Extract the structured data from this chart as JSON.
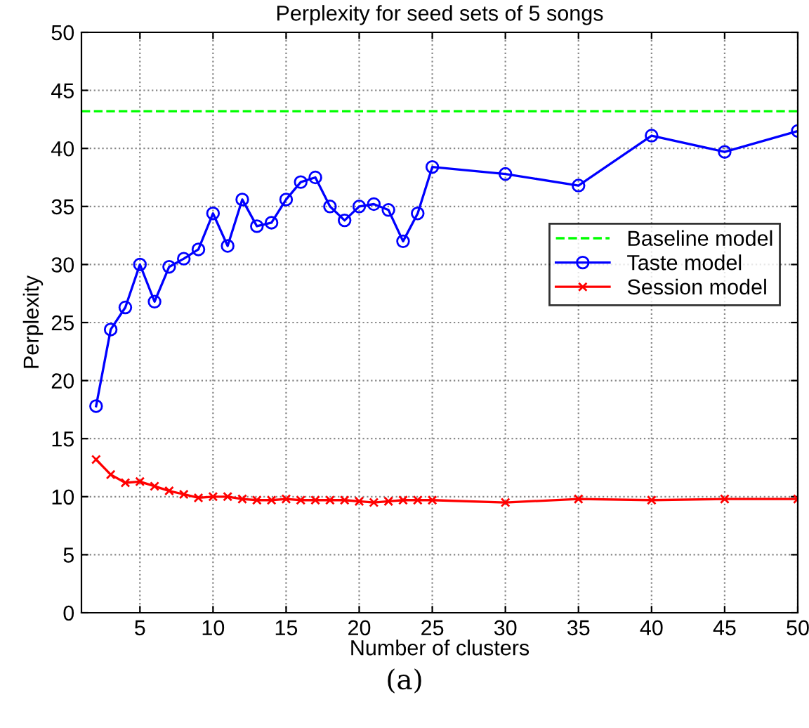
{
  "chart_data": {
    "type": "line",
    "title": "Perplexity for seed sets of 5 songs",
    "xlabel": "Number of clusters",
    "ylabel": "Perplexity",
    "xlim": [
      1,
      50
    ],
    "ylim": [
      0,
      50
    ],
    "xticks": [
      5,
      10,
      15,
      20,
      25,
      30,
      35,
      40,
      45,
      50
    ],
    "yticks": [
      0,
      5,
      10,
      15,
      20,
      25,
      30,
      35,
      40,
      45,
      50
    ],
    "grid": true,
    "legend": "right",
    "annotations": [
      "(a)"
    ],
    "series": [
      {
        "name": "Baseline model",
        "color": "#00ff00",
        "line_style": "dashed",
        "marker": "none",
        "x": [
          1,
          50
        ],
        "values": [
          43.2,
          43.2
        ]
      },
      {
        "name": "Taste model",
        "color": "#0000ff",
        "line_style": "solid",
        "marker": "circle",
        "x": [
          2,
          3,
          4,
          5,
          6,
          7,
          8,
          9,
          10,
          11,
          12,
          13,
          14,
          15,
          16,
          17,
          18,
          19,
          20,
          21,
          22,
          23,
          24,
          25,
          30,
          35,
          40,
          45,
          50
        ],
        "values": [
          17.8,
          24.4,
          26.3,
          30.0,
          26.8,
          29.8,
          30.5,
          31.3,
          34.4,
          31.6,
          35.6,
          33.3,
          33.6,
          35.6,
          37.1,
          37.5,
          35.0,
          33.8,
          35.0,
          35.2,
          34.7,
          32.0,
          34.4,
          38.4,
          37.8,
          36.8,
          41.1,
          39.7,
          41.5
        ]
      },
      {
        "name": "Session model",
        "color": "#ff0000",
        "line_style": "solid",
        "marker": "cross",
        "x": [
          2,
          3,
          4,
          5,
          6,
          7,
          8,
          9,
          10,
          11,
          12,
          13,
          14,
          15,
          16,
          17,
          18,
          19,
          20,
          21,
          22,
          23,
          24,
          25,
          30,
          35,
          40,
          45,
          50
        ],
        "values": [
          13.2,
          11.9,
          11.2,
          11.3,
          10.9,
          10.5,
          10.2,
          9.9,
          10.0,
          10.0,
          9.8,
          9.7,
          9.7,
          9.8,
          9.7,
          9.7,
          9.7,
          9.7,
          9.6,
          9.5,
          9.6,
          9.7,
          9.7,
          9.7,
          9.5,
          9.8,
          9.7,
          9.8,
          9.8
        ]
      }
    ]
  }
}
